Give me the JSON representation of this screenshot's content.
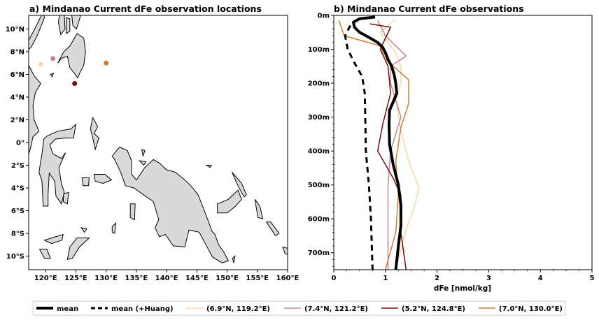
{
  "colors": {
    "land": "#d9d9d9",
    "mean": "#000000",
    "huang": "#000000",
    "st1": "#f7d9a8",
    "st2": "#b98a8e",
    "st3": "#7b0c0c",
    "st4": "#cf7c36"
  },
  "chart_data": [
    {
      "type": "map",
      "title": "a) Mindanao Current dFe observation locations",
      "xlim": [
        117.2,
        160
      ],
      "ylim": [
        -11.2,
        11.2
      ],
      "xticks": [
        120,
        125,
        130,
        135,
        140,
        145,
        150,
        155,
        160
      ],
      "xtick_labels": [
        "120°E",
        "125°E",
        "130°E",
        "135°E",
        "140°E",
        "145°E",
        "150°E",
        "155°E",
        "160°E"
      ],
      "yticks": [
        10,
        8,
        6,
        4,
        2,
        0,
        -2,
        -4,
        -6,
        -8,
        -10
      ],
      "ytick_labels": [
        "10°N",
        "8°N",
        "6°N",
        "4°N",
        "2°N",
        "0°",
        "2°S",
        "4°S",
        "6°S",
        "8°S",
        "10°S"
      ],
      "stations": [
        {
          "lat": 6.9,
          "lon": 119.2,
          "color": "#f7d9a8"
        },
        {
          "lat": 7.4,
          "lon": 121.2,
          "color": "#b98a8e"
        },
        {
          "lat": 5.2,
          "lon": 124.8,
          "color": "#7b0c0c"
        },
        {
          "lat": 7.0,
          "lon": 130.0,
          "color": "#cf7c36"
        }
      ]
    },
    {
      "type": "line",
      "title": "b) Mindanao Current dFe observations",
      "xlabel": "dFe [nmol/kg]",
      "xlim": [
        0,
        5
      ],
      "ylim": [
        750,
        0
      ],
      "xticks": [
        0,
        1,
        2,
        3,
        4,
        5
      ],
      "xtick_labels": [
        "0",
        "1",
        "2",
        "3",
        "4",
        "5"
      ],
      "yticks": [
        0,
        100,
        200,
        300,
        400,
        500,
        600,
        700
      ],
      "ytick_labels": [
        "0m",
        "100m",
        "200m",
        "300m",
        "400m",
        "500m",
        "600m",
        "700m"
      ],
      "series": [
        {
          "name": "mean",
          "color": "#000000",
          "width": 4,
          "dash": "",
          "points": [
            [
              0.8,
              5
            ],
            [
              0.5,
              10
            ],
            [
              0.38,
              20
            ],
            [
              0.4,
              35
            ],
            [
              0.5,
              50
            ],
            [
              0.68,
              65
            ],
            [
              0.85,
              80
            ],
            [
              0.95,
              95
            ],
            [
              1.0,
              110
            ],
            [
              1.05,
              130
            ],
            [
              1.12,
              150
            ],
            [
              1.17,
              175
            ],
            [
              1.2,
              200
            ],
            [
              1.22,
              230
            ],
            [
              1.15,
              255
            ],
            [
              1.08,
              280
            ],
            [
              1.07,
              320
            ],
            [
              1.08,
              380
            ],
            [
              1.15,
              440
            ],
            [
              1.25,
              500
            ],
            [
              1.3,
              560
            ],
            [
              1.3,
              620
            ],
            [
              1.25,
              680
            ],
            [
              1.2,
              750
            ]
          ]
        },
        {
          "name": "mean (+Huang)",
          "color": "#000000",
          "width": 3,
          "dash": "8,6",
          "points": [
            [
              0.32,
              30
            ],
            [
              0.22,
              60
            ],
            [
              0.27,
              100
            ],
            [
              0.4,
              140
            ],
            [
              0.55,
              180
            ],
            [
              0.6,
              230
            ],
            [
              0.61,
              300
            ],
            [
              0.62,
              400
            ],
            [
              0.68,
              500
            ],
            [
              0.72,
              600
            ],
            [
              0.75,
              750
            ]
          ]
        },
        {
          "name": "(6.9°N, 119.2°E)",
          "color": "#f7d9a8",
          "width": 1.5,
          "dash": "",
          "points": [
            [
              1.2,
              10
            ],
            [
              0.9,
              50
            ],
            [
              1.2,
              110
            ],
            [
              1.3,
              150
            ],
            [
              1.3,
              200
            ],
            [
              1.2,
              250
            ],
            [
              1.3,
              340
            ],
            [
              1.45,
              430
            ],
            [
              1.65,
              510
            ],
            [
              1.55,
              570
            ],
            [
              1.4,
              630
            ],
            [
              1.2,
              750
            ]
          ]
        },
        {
          "name": "(7.4°N, 121.2°E)",
          "color": "#b98a8e",
          "width": 1.5,
          "dash": "",
          "points": [
            [
              0.85,
              15
            ],
            [
              1.0,
              60
            ],
            [
              1.4,
              120
            ],
            [
              1.1,
              150
            ],
            [
              1.1,
              200
            ],
            [
              1.3,
              300
            ],
            [
              1.1,
              400
            ],
            [
              1.05,
              500
            ],
            [
              1.05,
              600
            ],
            [
              1.05,
              750
            ]
          ]
        },
        {
          "name": "(5.2°N, 124.8°E)",
          "color": "#7b0c0c",
          "width": 1.5,
          "dash": "",
          "points": [
            [
              0.7,
              25
            ],
            [
              1.1,
              35
            ],
            [
              0.9,
              100
            ],
            [
              1.05,
              150
            ],
            [
              1.1,
              230
            ],
            [
              0.95,
              320
            ],
            [
              0.85,
              400
            ],
            [
              1.15,
              480
            ],
            [
              1.3,
              530
            ],
            [
              1.3,
              640
            ],
            [
              1.4,
              750
            ]
          ]
        },
        {
          "name": "(7.0°N, 130.0°E)",
          "color": "#cf7c36",
          "width": 1.5,
          "dash": "",
          "points": [
            [
              0.1,
              15
            ],
            [
              0.2,
              60
            ],
            [
              0.9,
              90
            ],
            [
              1.0,
              130
            ],
            [
              1.45,
              190
            ],
            [
              1.45,
              260
            ],
            [
              1.3,
              330
            ],
            [
              1.2,
              430
            ],
            [
              1.25,
              530
            ],
            [
              1.2,
              640
            ],
            [
              1.0,
              750
            ]
          ]
        }
      ]
    }
  ]
}
